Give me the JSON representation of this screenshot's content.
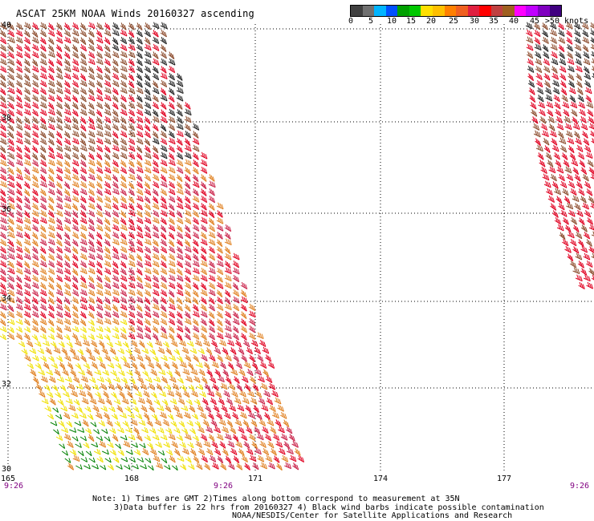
{
  "title": "ASCAT 25KM NOAA Winds 20160327 ascending",
  "scale": {
    "colors": [
      "#404040",
      "#707070",
      "#00b4ff",
      "#0050ff",
      "#00a000",
      "#00c800",
      "#ffe000",
      "#ffc000",
      "#ff8000",
      "#f06020",
      "#e02040",
      "#ff0000",
      "#c04040",
      "#a06020",
      "#ff00ff",
      "#c000ff",
      "#8000c0",
      "#400080"
    ],
    "labels": [
      "0",
      "5",
      "10",
      "15",
      "20",
      "25",
      "30",
      "35",
      "40",
      "45",
      ">50 knots"
    ]
  },
  "lat_labels": [
    "40",
    "38",
    "36",
    "34",
    "32",
    "30"
  ],
  "lon_labels": [
    "165",
    "168",
    "171",
    "174",
    "177"
  ],
  "time_labels": [
    "9:26",
    "9:26",
    "9:26"
  ],
  "note": {
    "line1": "Note: 1) Times are GMT 2)Times along bottom correspond to measurement at 35N",
    "line2": "3)Data buffer is 22 hrs from 20160327 4) Black wind barbs indicate possible contamination",
    "line3": "NOAA/NESDIS/Center for Satellite Applications and Research"
  },
  "wind_color_bands": {
    "green": "#008000",
    "yellow": "#f0e000",
    "orange": "#e08020",
    "red": "#e00020",
    "crimson": "#c81e46",
    "brown": "#8b4a2b",
    "purple": "#c000c0",
    "black": "#202020"
  }
}
